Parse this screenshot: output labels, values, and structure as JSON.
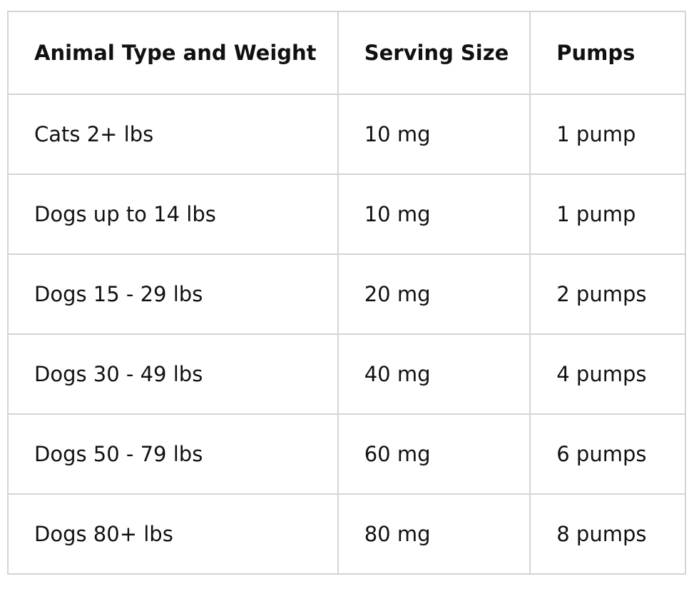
{
  "table": {
    "header": [
      "Animal Type and Weight",
      "Serving Size",
      "Pumps"
    ],
    "rows": [
      [
        "Cats 2+ lbs",
        "10 mg",
        "1 pump"
      ],
      [
        "Dogs up to 14 lbs",
        "10 mg",
        "1 pump"
      ],
      [
        "Dogs 15 - 29 lbs",
        "20 mg",
        "2 pumps"
      ],
      [
        "Dogs 30 - 49 lbs",
        "40 mg",
        "4 pumps"
      ],
      [
        "Dogs 50 - 79 lbs",
        "60 mg",
        "6 pumps"
      ],
      [
        "Dogs 80+ lbs",
        "80 mg",
        "8 pumps"
      ]
    ]
  }
}
